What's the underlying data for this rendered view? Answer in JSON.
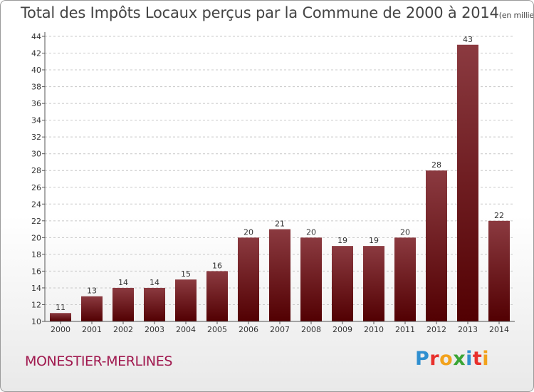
{
  "title": "Total des Impôts Locaux perçus par la Commune de 2000 à 2014",
  "title_unit": "(en milliers d'€)",
  "commune": "MONESTIER-MERLINES",
  "logo": {
    "text": "Proxiti",
    "letters": [
      {
        "ch": "P",
        "color": "#2f8fd0"
      },
      {
        "ch": "r",
        "color": "#e8302c"
      },
      {
        "ch": "o",
        "color": "#f2a21c"
      },
      {
        "ch": "x",
        "color": "#3aa535"
      },
      {
        "ch": "i",
        "color": "#2f8fd0"
      },
      {
        "ch": "t",
        "color": "#e8302c"
      },
      {
        "ch": "i",
        "color": "#f2a21c"
      }
    ]
  },
  "colors": {
    "bar_top": "#8b3a40",
    "bar_bottom": "#520002",
    "axis": "#555555",
    "grid": "#c8c8c8"
  },
  "chart_data": {
    "type": "bar",
    "title": "Total des Impôts Locaux perçus par la Commune de 2000 à 2014",
    "xlabel": "",
    "ylabel": "(en milliers d'€)",
    "categories": [
      "2000",
      "2001",
      "2002",
      "2003",
      "2004",
      "2005",
      "2006",
      "2007",
      "2008",
      "2009",
      "2010",
      "2011",
      "2012",
      "2013",
      "2014"
    ],
    "values": [
      11,
      13,
      14,
      14,
      15,
      16,
      20,
      21,
      20,
      19,
      19,
      20,
      28,
      43,
      22
    ],
    "ylim": [
      10,
      44
    ],
    "yticks": [
      10,
      12,
      14,
      16,
      18,
      20,
      22,
      24,
      26,
      28,
      30,
      32,
      34,
      36,
      38,
      40,
      42,
      44
    ],
    "grid": "horizontal dashed"
  }
}
